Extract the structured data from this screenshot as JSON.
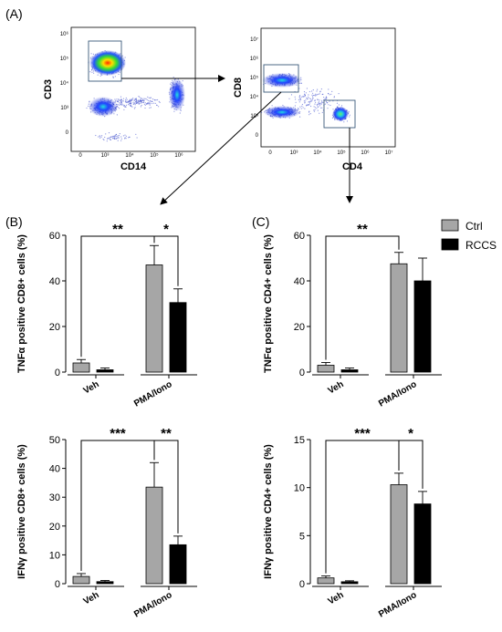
{
  "figure": {
    "panel_a": "(A)",
    "panel_b": "(B)",
    "panel_c": "(C)",
    "legend": [
      {
        "label": "Ctrl",
        "color": "#a6a6a6"
      },
      {
        "label": "RCCS",
        "color": "#000000"
      }
    ]
  },
  "flow": {
    "plot1": {
      "xlabel": "CD14",
      "ylabel": "CD3",
      "x_ticks": [
        "0",
        "10³",
        "10⁴",
        "10⁵",
        "10⁶"
      ],
      "y_ticks": [
        "0",
        "10³",
        "10⁴",
        "10⁵",
        "10⁶"
      ]
    },
    "plot2": {
      "xlabel": "CD4",
      "ylabel": "CD8",
      "x_ticks": [
        "0",
        "10³",
        "10⁴",
        "10⁵",
        "10⁶",
        "10⁷"
      ],
      "y_ticks": [
        "0",
        "10³",
        "10⁴",
        "10⁵",
        "10⁶",
        "10⁷"
      ]
    }
  },
  "colors": {
    "ctrl": "#a6a6a6",
    "rccs": "#000000"
  },
  "chart_data": [
    {
      "id": "tnf-cd8",
      "type": "bar",
      "ylabel": "TNFα positive CD8+ cells (%)",
      "categories": [
        "Veh",
        "PMA/Iono"
      ],
      "ylim": [
        0,
        60
      ],
      "yticks": [
        0,
        20,
        40,
        60
      ],
      "series": [
        {
          "name": "Ctrl",
          "values": [
            4,
            47
          ],
          "errors": [
            1.5,
            8.5
          ]
        },
        {
          "name": "RCCS",
          "values": [
            1,
            30.5
          ],
          "errors": [
            0.8,
            6
          ]
        }
      ],
      "annotations": [
        {
          "label": "**",
          "between": [
            "Veh Ctrl",
            "PMA/Iono Ctrl"
          ]
        },
        {
          "label": "*",
          "between": [
            "PMA/Iono Ctrl",
            "PMA/Iono RCCS"
          ]
        }
      ]
    },
    {
      "id": "tnf-cd4",
      "type": "bar",
      "ylabel": "TNFα positive CD4+ cells (%)",
      "categories": [
        "Veh",
        "PMA/Iono"
      ],
      "ylim": [
        0,
        60
      ],
      "yticks": [
        0,
        20,
        40,
        60
      ],
      "series": [
        {
          "name": "Ctrl",
          "values": [
            3,
            47.5
          ],
          "errors": [
            1.2,
            5
          ]
        },
        {
          "name": "RCCS",
          "values": [
            1,
            40
          ],
          "errors": [
            0.8,
            10
          ]
        }
      ],
      "annotations": [
        {
          "label": "**",
          "between": [
            "Veh Ctrl",
            "PMA/Iono Ctrl"
          ]
        }
      ]
    },
    {
      "id": "ifn-cd8",
      "type": "bar",
      "ylabel": "IFNγ positive CD8+ cells (%)",
      "categories": [
        "Veh",
        "PMA/Iono"
      ],
      "ylim": [
        0,
        50
      ],
      "yticks": [
        0,
        10,
        20,
        30,
        40,
        50
      ],
      "series": [
        {
          "name": "Ctrl",
          "values": [
            2.5,
            33.5
          ],
          "errors": [
            1,
            8.5
          ]
        },
        {
          "name": "RCCS",
          "values": [
            0.7,
            13.5
          ],
          "errors": [
            0.4,
            3
          ]
        }
      ],
      "annotations": [
        {
          "label": "***",
          "between": [
            "Veh Ctrl",
            "PMA/Iono Ctrl"
          ]
        },
        {
          "label": "**",
          "between": [
            "PMA/Iono Ctrl",
            "PMA/Iono RCCS"
          ]
        }
      ]
    },
    {
      "id": "ifn-cd4",
      "type": "bar",
      "ylabel": "IFNγ positive CD4+ cells (%)",
      "categories": [
        "Veh",
        "PMA/Iono"
      ],
      "ylim": [
        0,
        15
      ],
      "yticks": [
        0,
        5,
        10,
        15
      ],
      "series": [
        {
          "name": "Ctrl",
          "values": [
            0.6,
            10.3
          ],
          "errors": [
            0.2,
            1.2
          ]
        },
        {
          "name": "RCCS",
          "values": [
            0.2,
            8.3
          ],
          "errors": [
            0.1,
            1.3
          ]
        }
      ],
      "annotations": [
        {
          "label": "***",
          "between": [
            "Veh Ctrl",
            "PMA/Iono Ctrl"
          ]
        },
        {
          "label": "*",
          "between": [
            "PMA/Iono Ctrl",
            "PMA/Iono RCCS"
          ]
        }
      ]
    }
  ]
}
